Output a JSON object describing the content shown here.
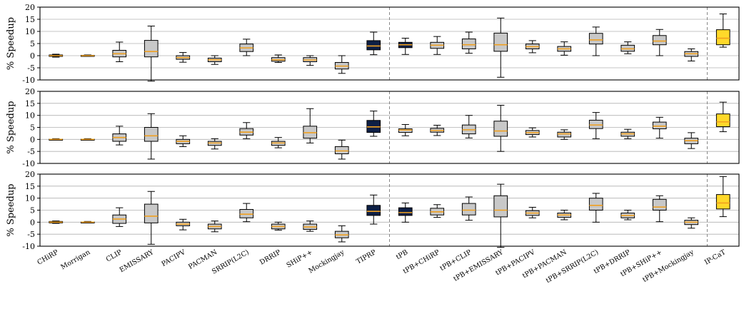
{
  "chart_data": {
    "type": "box",
    "ylabel": "% Speedup",
    "ylim": [
      -10,
      20
    ],
    "yticks": [
      -10,
      -5,
      0,
      5,
      10,
      15,
      20
    ],
    "grid": true,
    "categories": [
      "CHiRP",
      "Morrigan",
      "CLIP",
      "EMISSARY",
      "PACIPV",
      "PACMAN",
      "SRRIP(L2C)",
      "DRRIP",
      "SHiP++",
      "Mockingjay",
      "TIPRP",
      "tPB",
      "tPB+CHiRP",
      "tPB+CLIP",
      "tPB+EMISSARY",
      "tPB+PACIPV",
      "tPB+PACMAN",
      "tPB+SRRIP(L2C)",
      "tPB+DRRIP",
      "tPB+SHiP++",
      "tPB+Mockingjay",
      "IP-CaT"
    ],
    "group_separators_after": [
      "TIPRP",
      "tPB+Mockingjay"
    ],
    "colors": {
      "default": "#c8c8c8",
      "tiprp": "#0d1f45",
      "ipcat": "#ffd92a",
      "median": "#f0a020",
      "grid": "#b0b0b0"
    },
    "panels": [
      {
        "boxes": [
          {
            "fill": "default",
            "whislo": -0.6,
            "q1": -0.3,
            "med": 0,
            "q3": 0.3,
            "whishi": 0.6
          },
          {
            "fill": "default",
            "whislo": -0.3,
            "q1": -0.15,
            "med": 0,
            "q3": 0.15,
            "whishi": 0.3
          },
          {
            "fill": "default",
            "whislo": -2.5,
            "q1": -0.5,
            "med": 0.8,
            "q3": 2.2,
            "whishi": 5.6
          },
          {
            "fill": "default",
            "whislo": -10.5,
            "q1": -0.5,
            "med": 1.7,
            "q3": 6.3,
            "whishi": 12.2
          },
          {
            "fill": "default",
            "whislo": -2.7,
            "q1": -1.5,
            "med": -0.8,
            "q3": 0,
            "whishi": 1.3
          },
          {
            "fill": "default",
            "whislo": -3.6,
            "q1": -2.5,
            "med": -1.7,
            "q3": -1,
            "whishi": 0
          },
          {
            "fill": "default",
            "whislo": 0,
            "q1": 1.7,
            "med": 3.2,
            "q3": 4.8,
            "whishi": 6.8
          },
          {
            "fill": "default",
            "whislo": -2.8,
            "q1": -2.3,
            "med": -1.7,
            "q3": -0.8,
            "whishi": 0.3
          },
          {
            "fill": "default",
            "whislo": -4,
            "q1": -2.5,
            "med": -1.8,
            "q3": -0.8,
            "whishi": 0
          },
          {
            "fill": "default",
            "whislo": -7.3,
            "q1": -5.5,
            "med": -4.3,
            "q3": -2.8,
            "whishi": 0
          },
          {
            "fill": "tiprp",
            "whislo": 0.4,
            "q1": 2.4,
            "med": 4,
            "q3": 6.2,
            "whishi": 9.7
          },
          {
            "fill": "tiprp",
            "whislo": 0.5,
            "q1": 3.3,
            "med": 4.5,
            "q3": 5.5,
            "whishi": 7.2
          },
          {
            "fill": "default",
            "whislo": 0.5,
            "q1": 3,
            "med": 4.3,
            "q3": 5.5,
            "whishi": 7.9
          },
          {
            "fill": "default",
            "whislo": 1,
            "q1": 2.8,
            "med": 4.5,
            "q3": 6.9,
            "whishi": 9.7
          },
          {
            "fill": "default",
            "whislo": -8.9,
            "q1": 1.8,
            "med": 4.5,
            "q3": 9.3,
            "whishi": 15.5
          },
          {
            "fill": "default",
            "whislo": 1.2,
            "q1": 2.8,
            "med": 3.7,
            "q3": 4.8,
            "whishi": 6.2
          },
          {
            "fill": "default",
            "whislo": 0.2,
            "q1": 1.8,
            "med": 2.8,
            "q3": 3.8,
            "whishi": 5.7
          },
          {
            "fill": "default",
            "whislo": 0,
            "q1": 4.8,
            "med": 6.5,
            "q3": 9.2,
            "whishi": 11.8
          },
          {
            "fill": "default",
            "whislo": 0.8,
            "q1": 1.8,
            "med": 2.8,
            "q3": 4.3,
            "whishi": 5.7
          },
          {
            "fill": "default",
            "whislo": 0,
            "q1": 4.5,
            "med": 6,
            "q3": 8.3,
            "whishi": 10.8
          },
          {
            "fill": "default",
            "whislo": -2.2,
            "q1": -0.3,
            "med": 0.8,
            "q3": 1.7,
            "whishi": 2.8
          },
          {
            "fill": "ipcat",
            "whislo": 3.5,
            "q1": 4.5,
            "med": 7.2,
            "q3": 10.7,
            "whishi": 17.2
          }
        ]
      },
      {
        "boxes": [
          {
            "fill": "default",
            "whislo": -0.3,
            "q1": -0.1,
            "med": 0,
            "q3": 0.1,
            "whishi": 0.3
          },
          {
            "fill": "default",
            "whislo": -0.3,
            "q1": -0.1,
            "med": 0,
            "q3": 0.1,
            "whishi": 0.3
          },
          {
            "fill": "default",
            "whislo": -2.3,
            "q1": -0.8,
            "med": 0.8,
            "q3": 2.3,
            "whishi": 5.5
          },
          {
            "fill": "default",
            "whislo": -8.2,
            "q1": -0.8,
            "med": 1.5,
            "q3": 5,
            "whishi": 10.7
          },
          {
            "fill": "default",
            "whislo": -3,
            "q1": -1.8,
            "med": -0.8,
            "q3": 0,
            "whishi": 1.5
          },
          {
            "fill": "default",
            "whislo": -4,
            "q1": -2.5,
            "med": -1.5,
            "q3": -0.8,
            "whishi": 0.3
          },
          {
            "fill": "default",
            "whislo": 0.3,
            "q1": 1.8,
            "med": 3,
            "q3": 4.5,
            "whishi": 7
          },
          {
            "fill": "default",
            "whislo": -3.5,
            "q1": -2.5,
            "med": -1.5,
            "q3": -0.8,
            "whishi": 0.8
          },
          {
            "fill": "default",
            "whislo": -1.5,
            "q1": 0.5,
            "med": 2.8,
            "q3": 5.5,
            "whishi": 12.8
          },
          {
            "fill": "default",
            "whislo": -8.2,
            "q1": -6,
            "med": -4.8,
            "q3": -3,
            "whishi": -0.3
          },
          {
            "fill": "tiprp",
            "whislo": 1.3,
            "q1": 2.9,
            "med": 5.2,
            "q3": 7.9,
            "whishi": 11.8
          },
          {
            "fill": "default",
            "whislo": 1.5,
            "q1": 2.9,
            "med": 3.9,
            "q3": 4.4,
            "whishi": 6.2
          },
          {
            "fill": "default",
            "whislo": 1.6,
            "q1": 3,
            "med": 3.7,
            "q3": 4.6,
            "whishi": 5.9
          },
          {
            "fill": "default",
            "whislo": 0.6,
            "q1": 2.3,
            "med": 4,
            "q3": 6,
            "whishi": 10
          },
          {
            "fill": "default",
            "whislo": -5,
            "q1": 1.3,
            "med": 3.5,
            "q3": 7.6,
            "whishi": 14.2
          },
          {
            "fill": "default",
            "whislo": 1,
            "q1": 2,
            "med": 2.8,
            "q3": 3.7,
            "whishi": 4.8
          },
          {
            "fill": "default",
            "whislo": 0,
            "q1": 1,
            "med": 2.3,
            "q3": 3,
            "whishi": 4
          },
          {
            "fill": "default",
            "whislo": 0.3,
            "q1": 4.5,
            "med": 6,
            "q3": 8,
            "whishi": 11.2
          },
          {
            "fill": "default",
            "whislo": 0.3,
            "q1": 1.3,
            "med": 2.3,
            "q3": 3,
            "whishi": 4.2
          },
          {
            "fill": "default",
            "whislo": 0.5,
            "q1": 4.4,
            "med": 5.5,
            "q3": 7.2,
            "whishi": 9.2
          },
          {
            "fill": "default",
            "whislo": -3.8,
            "q1": -1.8,
            "med": -0.5,
            "q3": 0.5,
            "whishi": 2.8
          },
          {
            "fill": "ipcat",
            "whislo": 3.2,
            "q1": 5.3,
            "med": 7.3,
            "q3": 10.6,
            "whishi": 15.5
          }
        ]
      },
      {
        "boxes": [
          {
            "fill": "tiprp",
            "whislo": -0.5,
            "q1": -0.3,
            "med": 0,
            "q3": 0.3,
            "whishi": 0.5
          },
          {
            "fill": "default",
            "whislo": -0.3,
            "q1": -0.1,
            "med": 0,
            "q3": 0.1,
            "whishi": 0.3
          },
          {
            "fill": "default",
            "whislo": -1.8,
            "q1": -0.5,
            "med": 1.3,
            "q3": 3,
            "whishi": 6
          },
          {
            "fill": "default",
            "whislo": -9.2,
            "q1": -0.3,
            "med": 2.5,
            "q3": 7.5,
            "whishi": 12.8
          },
          {
            "fill": "default",
            "whislo": -3.2,
            "q1": -1.5,
            "med": -0.8,
            "q3": 0,
            "whishi": 1.2
          },
          {
            "fill": "default",
            "whislo": -4,
            "q1": -2.8,
            "med": -1.8,
            "q3": -0.8,
            "whishi": 0.5
          },
          {
            "fill": "default",
            "whislo": 0.2,
            "q1": 1.8,
            "med": 3.3,
            "q3": 5.3,
            "whishi": 7.8
          },
          {
            "fill": "default",
            "whislo": -3.3,
            "q1": -2.8,
            "med": -1.8,
            "q3": -0.8,
            "whishi": 0
          },
          {
            "fill": "default",
            "whislo": -3.8,
            "q1": -3,
            "med": -2,
            "q3": -0.8,
            "whishi": 0.5
          },
          {
            "fill": "default",
            "whislo": -8.2,
            "q1": -6.5,
            "med": -5.3,
            "q3": -3.8,
            "whishi": -1.5
          },
          {
            "fill": "tiprp",
            "whislo": -0.8,
            "q1": 2.8,
            "med": 4.5,
            "q3": 7,
            "whishi": 11.3
          },
          {
            "fill": "tiprp",
            "whislo": 0,
            "q1": 2.8,
            "med": 4,
            "q3": 6,
            "whishi": 8
          },
          {
            "fill": "default",
            "whislo": 2,
            "q1": 3,
            "med": 4.3,
            "q3": 5.8,
            "whishi": 7.3
          },
          {
            "fill": "default",
            "whislo": 0.8,
            "q1": 3,
            "med": 5,
            "q3": 7.8,
            "whishi": 10.5
          },
          {
            "fill": "default",
            "whislo": -10.5,
            "q1": 2.2,
            "med": 5,
            "q3": 11,
            "whishi": 15.8
          },
          {
            "fill": "default",
            "whislo": 1.8,
            "q1": 2.8,
            "med": 3.8,
            "q3": 4.8,
            "whishi": 6.2
          },
          {
            "fill": "default",
            "whislo": 1,
            "q1": 2,
            "med": 3,
            "q3": 3.8,
            "whishi": 5
          },
          {
            "fill": "default",
            "whislo": 0,
            "q1": 5,
            "med": 7,
            "q3": 10,
            "whishi": 12
          },
          {
            "fill": "default",
            "whislo": 1,
            "q1": 1.8,
            "med": 2.8,
            "q3": 3.8,
            "whishi": 5
          },
          {
            "fill": "default",
            "whislo": 0.2,
            "q1": 5,
            "med": 6.3,
            "q3": 9.5,
            "whishi": 11
          },
          {
            "fill": "default",
            "whislo": -2.5,
            "q1": -1,
            "med": 0,
            "q3": 0.8,
            "whishi": 1.8
          },
          {
            "fill": "ipcat",
            "whislo": 2.3,
            "q1": 5.5,
            "med": 8,
            "q3": 11.5,
            "whishi": 19
          }
        ]
      }
    ]
  }
}
